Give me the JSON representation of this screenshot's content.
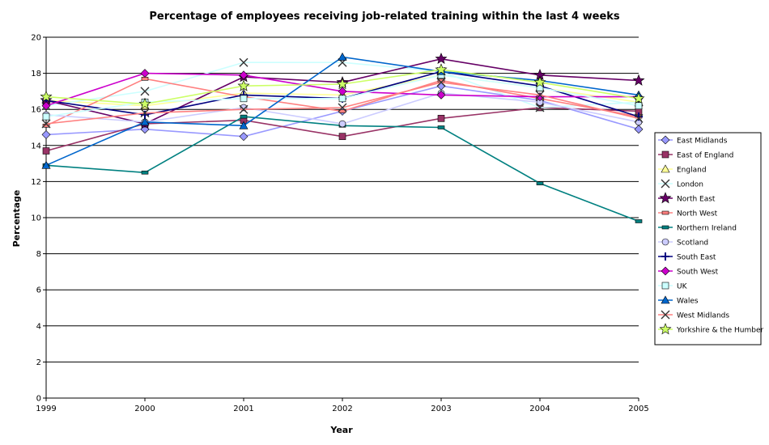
{
  "chart_data": {
    "type": "line",
    "title": "Percentage of employees receiving job-related training within the last 4 weeks",
    "xlabel": "Year",
    "ylabel": "Percentage",
    "x": [
      "1999",
      "2000",
      "2001",
      "2002",
      "2003",
      "2004",
      "2005"
    ],
    "ylim": [
      0,
      20
    ],
    "yticks": [
      "0",
      "2",
      "4",
      "6",
      "8",
      "10",
      "12",
      "14",
      "16",
      "18",
      "20"
    ],
    "grid": "horizontal",
    "legend_position": "right",
    "series": [
      {
        "name": "East Midlands",
        "color": "#9999ff",
        "marker": "diamond",
        "values": [
          14.6,
          14.9,
          14.5,
          15.9,
          17.3,
          16.5,
          14.9
        ]
      },
      {
        "name": "East of England",
        "color": "#993366",
        "marker": "square",
        "values": [
          13.7,
          15.2,
          15.4,
          14.5,
          15.5,
          16.1,
          15.9
        ]
      },
      {
        "name": "England",
        "color": "#ffff99",
        "marker": "triangle",
        "values": [
          16.5,
          16.2,
          16.9,
          16.8,
          17.9,
          17.2,
          16.4
        ]
      },
      {
        "name": "London",
        "color": "#ccffff",
        "marker": "x",
        "values": [
          16.2,
          17.0,
          18.6,
          18.6,
          18.1,
          16.1,
          16.4
        ]
      },
      {
        "name": "North East",
        "color": "#660066",
        "marker": "star",
        "values": [
          16.5,
          15.2,
          17.8,
          17.5,
          18.8,
          17.9,
          17.6
        ]
      },
      {
        "name": "North West",
        "color": "#ff8080",
        "marker": "dash",
        "values": [
          15.1,
          17.7,
          16.7,
          15.9,
          17.6,
          16.6,
          15.6
        ]
      },
      {
        "name": "Northern Ireland",
        "color": "#008080",
        "marker": "dash",
        "values": [
          12.9,
          12.5,
          15.6,
          15.1,
          15.0,
          11.9,
          9.8
        ]
      },
      {
        "name": "Scotland",
        "color": "#ccccff",
        "marker": "circle",
        "values": [
          15.7,
          15.3,
          16.1,
          15.2,
          16.9,
          16.4,
          15.3
        ]
      },
      {
        "name": "South East",
        "color": "#000080",
        "marker": "plus",
        "values": [
          16.5,
          15.7,
          16.8,
          16.6,
          18.1,
          17.3,
          15.6
        ]
      },
      {
        "name": "South West",
        "color": "#cc00cc",
        "marker": "diamond",
        "values": [
          16.2,
          18.0,
          17.9,
          17.0,
          16.8,
          16.7,
          16.7
        ]
      },
      {
        "name": "UK",
        "color": "#ccffff",
        "marker": "square",
        "values": [
          15.6,
          16.4,
          16.6,
          16.6,
          17.9,
          17.2,
          16.2
        ]
      },
      {
        "name": "Wales",
        "color": "#0066cc",
        "marker": "triangle",
        "values": [
          12.9,
          15.3,
          15.1,
          18.9,
          18.1,
          17.6,
          16.8
        ]
      },
      {
        "name": "West Midlands",
        "color": "#ff8080",
        "marker": "x",
        "values": [
          15.2,
          15.8,
          16.0,
          16.1,
          17.5,
          16.8,
          15.5
        ]
      },
      {
        "name": "Yorkshire & the Humber",
        "color": "#ccff66",
        "marker": "star",
        "values": [
          16.7,
          16.3,
          17.3,
          17.4,
          18.2,
          17.5,
          16.6
        ]
      }
    ]
  }
}
